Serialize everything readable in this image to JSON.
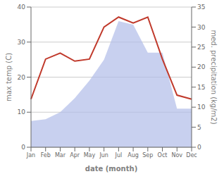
{
  "chart_data": {
    "type": "line",
    "categories": [
      "Jan",
      "Feb",
      "Mar",
      "Apr",
      "May",
      "Jun",
      "Jul",
      "Aug",
      "Sep",
      "Oct",
      "Nov",
      "Dec"
    ],
    "series": [
      {
        "type": "area",
        "color": "#b0bce8",
        "values": [
          7.5,
          8.0,
          10.0,
          14.0,
          19.0,
          25.0,
          36.0,
          35.0,
          27.0,
          27.0,
          11.0,
          11.0
        ]
      },
      {
        "type": "line",
        "color": "#c0392b",
        "axis": "y2",
        "values": [
          12.0,
          22.0,
          23.5,
          21.5,
          22.0,
          30.0,
          32.5,
          31.0,
          32.5,
          22.0,
          13.0,
          12.0
        ]
      }
    ],
    "xlabel": "date (month)",
    "ylabel": "max temp (C)",
    "y2label": "med. precipitation (kg/m2)",
    "ylim": [
      0,
      40
    ],
    "yticks": [
      0,
      10,
      20,
      30,
      40
    ],
    "y2lim": [
      0,
      35
    ],
    "y2ticks": [
      0,
      5,
      10,
      15,
      20,
      25,
      30,
      35
    ],
    "grid": true
  }
}
